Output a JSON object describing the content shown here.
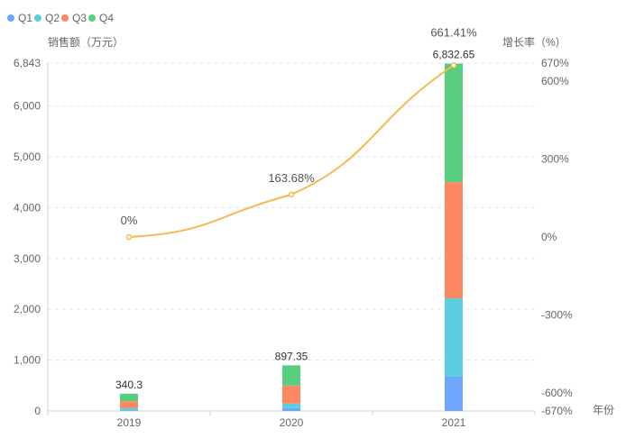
{
  "chart_data": {
    "type": "bar",
    "stacked": true,
    "categories": [
      "2019",
      "2020",
      "2021"
    ],
    "series": [
      {
        "name": "Q1",
        "color": "#6ea6ff",
        "values": [
          10,
          55,
          675
        ]
      },
      {
        "name": "Q2",
        "color": "#5bcfe0",
        "values": [
          45,
          90,
          1540
        ]
      },
      {
        "name": "Q3",
        "color": "#fc8760",
        "values": [
          135,
          355,
          2285
        ]
      },
      {
        "name": "Q4",
        "color": "#58cf7e",
        "values": [
          150.3,
          397.35,
          2332.65
        ]
      }
    ],
    "totals": [
      "340.3",
      "897.35",
      "6,832.65"
    ],
    "line": {
      "name": "增长率",
      "color": "#f5b94f",
      "values": [
        0,
        163.68,
        661.41
      ],
      "labels": [
        "0%",
        "163.68%",
        "661.41%"
      ]
    },
    "ylabel": "销售额（万元）",
    "y2label": "增长率（%）",
    "xlabel": "年份",
    "ylim": [
      0,
      6843
    ],
    "y2lim": [
      -670,
      670
    ],
    "yticks": [
      {
        "v": 0,
        "t": "0"
      },
      {
        "v": 1000,
        "t": "1,000"
      },
      {
        "v": 2000,
        "t": "2,000"
      },
      {
        "v": 3000,
        "t": "3,000"
      },
      {
        "v": 4000,
        "t": "4,000"
      },
      {
        "v": 5000,
        "t": "5,000"
      },
      {
        "v": 6000,
        "t": "6,000"
      },
      {
        "v": 6843,
        "t": "6,843"
      }
    ],
    "y2ticks": [
      {
        "v": 670,
        "t": "670%"
      },
      {
        "v": 600,
        "t": "600%"
      },
      {
        "v": 300,
        "t": "300%"
      },
      {
        "v": 0,
        "t": "0%"
      },
      {
        "v": -300,
        "t": "-300%"
      },
      {
        "v": -600,
        "t": "-600%"
      },
      {
        "v": -670,
        "t": "-670%"
      }
    ],
    "grid": true,
    "legend": "top-left"
  }
}
